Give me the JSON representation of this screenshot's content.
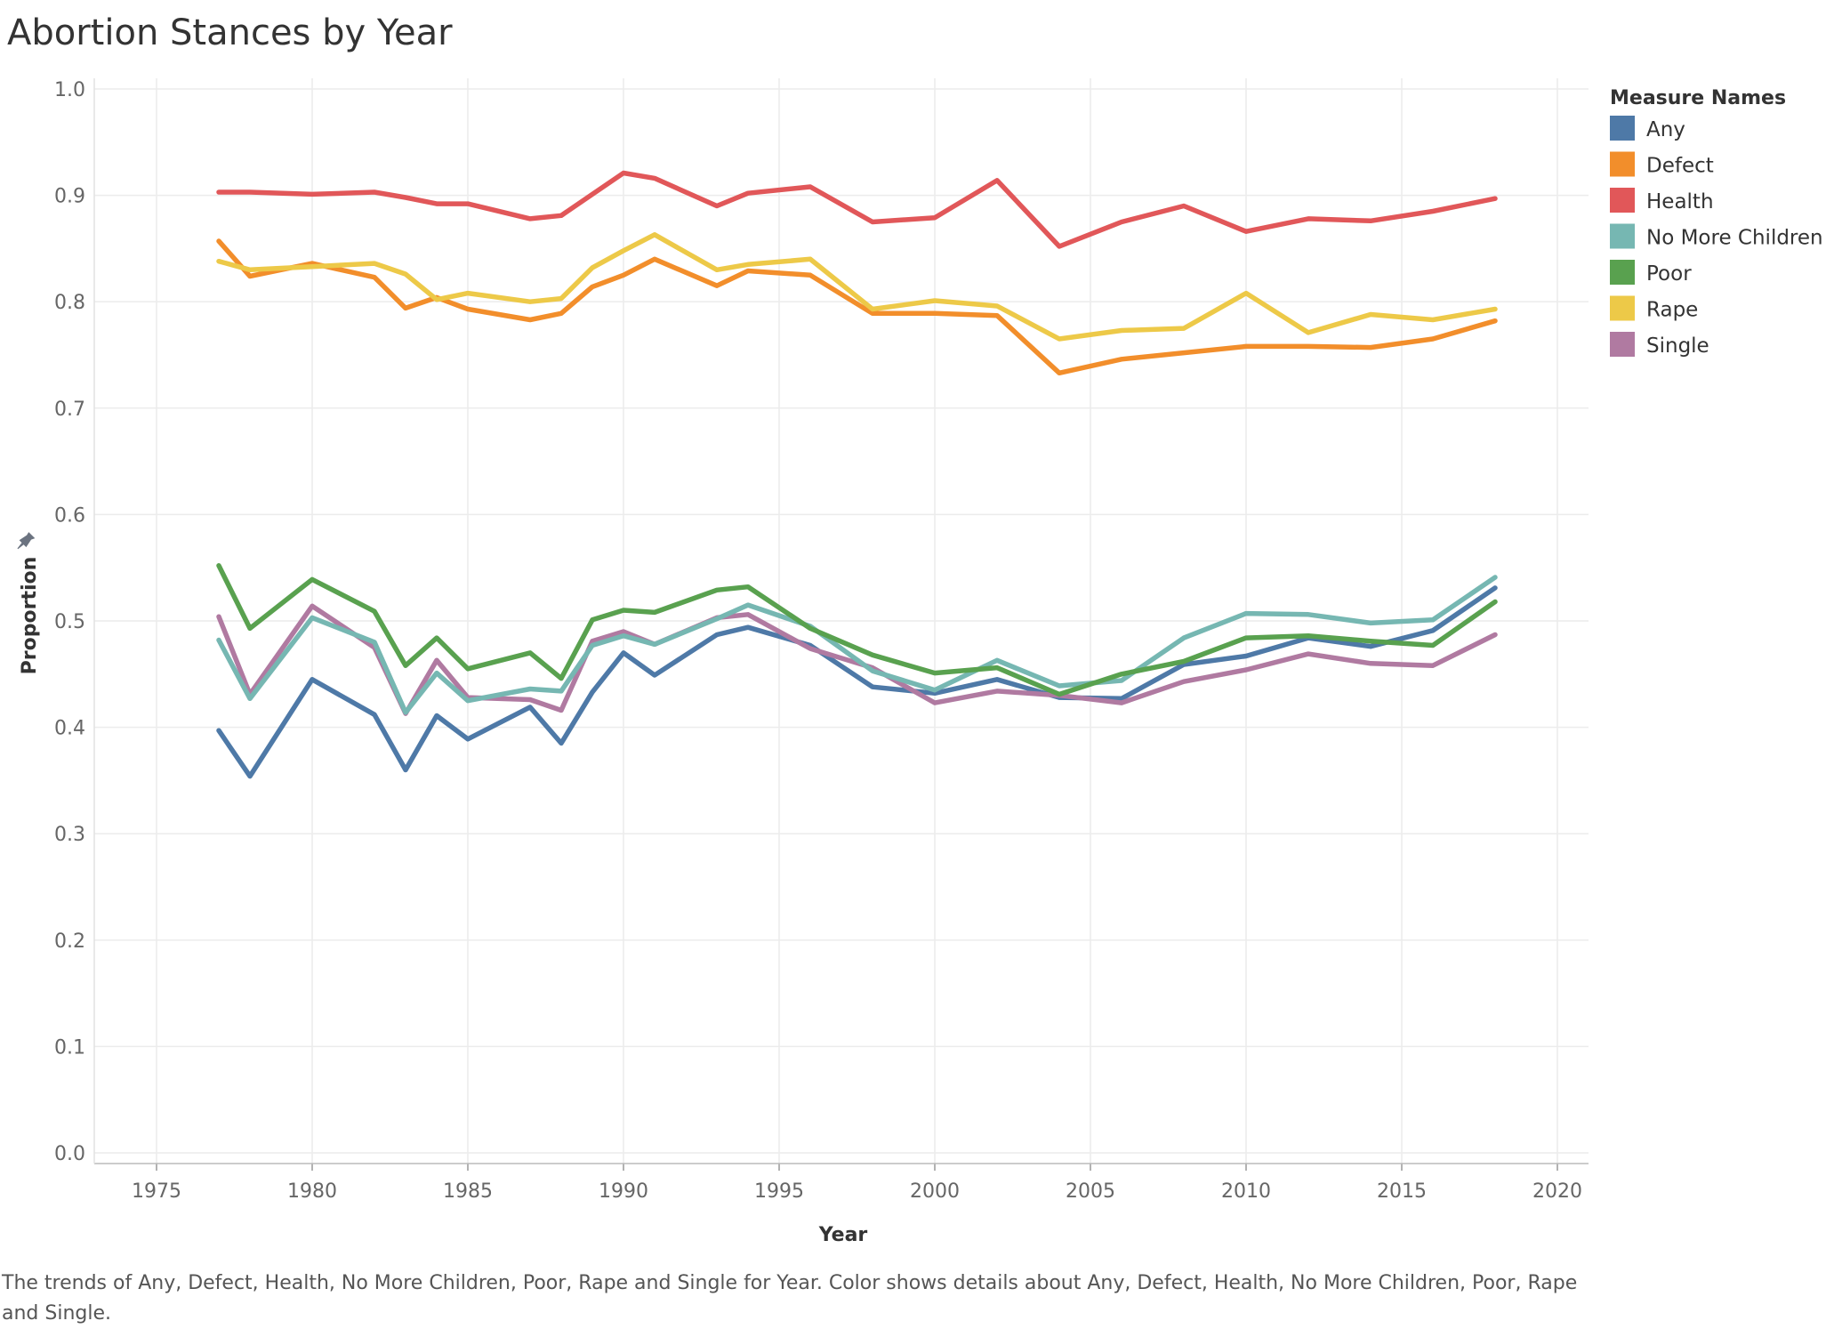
{
  "chart_data": {
    "type": "line",
    "title": "Abortion Stances by Year",
    "xlabel": "Year",
    "ylabel": "Proportion",
    "xlim": [
      1973,
      2021
    ],
    "ylim": [
      -0.01,
      1.01
    ],
    "xticks": [
      1975,
      1980,
      1985,
      1990,
      1995,
      2000,
      2005,
      2010,
      2015,
      2020
    ],
    "yticks": [
      "0.0",
      "0.1",
      "0.2",
      "0.3",
      "0.4",
      "0.5",
      "0.6",
      "0.7",
      "0.8",
      "0.9",
      "1.0"
    ],
    "grid": true,
    "legend": {
      "title": "Measure Names",
      "position": "right"
    },
    "x": [
      1977,
      1978,
      1980,
      1982,
      1983,
      1984,
      1985,
      1987,
      1988,
      1989,
      1990,
      1991,
      1993,
      1994,
      1996,
      1998,
      2000,
      2002,
      2004,
      2006,
      2008,
      2010,
      2012,
      2014,
      2016,
      2018
    ],
    "series": [
      {
        "name": "Any",
        "color": "#4e79a7",
        "values": [
          0.397,
          0.354,
          0.445,
          0.412,
          0.36,
          0.411,
          0.389,
          0.419,
          0.385,
          0.433,
          0.47,
          0.449,
          0.487,
          0.494,
          0.477,
          0.438,
          0.432,
          0.445,
          0.428,
          0.427,
          0.459,
          0.467,
          0.484,
          0.476,
          0.491,
          0.531
        ]
      },
      {
        "name": "Defect",
        "color": "#f28e2b",
        "values": [
          0.857,
          0.824,
          0.836,
          0.823,
          0.794,
          0.804,
          0.793,
          0.783,
          0.789,
          0.814,
          0.825,
          0.84,
          0.815,
          0.829,
          0.825,
          0.789,
          0.789,
          0.787,
          0.733,
          0.746,
          0.752,
          0.758,
          0.758,
          0.757,
          0.765,
          0.782
        ]
      },
      {
        "name": "Health",
        "color": "#e15759",
        "values": [
          0.903,
          0.903,
          0.901,
          0.903,
          0.898,
          0.892,
          0.892,
          0.878,
          0.881,
          0.901,
          0.921,
          0.916,
          0.89,
          0.902,
          0.908,
          0.875,
          0.879,
          0.914,
          0.852,
          0.875,
          0.89,
          0.866,
          0.878,
          0.876,
          0.885,
          0.897
        ]
      },
      {
        "name": "No More Children",
        "color": "#76b7b2",
        "values": [
          0.482,
          0.427,
          0.503,
          0.48,
          0.414,
          0.451,
          0.425,
          0.436,
          0.434,
          0.477,
          0.486,
          0.478,
          0.502,
          0.515,
          0.495,
          0.453,
          0.435,
          0.463,
          0.439,
          0.444,
          0.484,
          0.507,
          0.506,
          0.498,
          0.501,
          0.541
        ]
      },
      {
        "name": "Poor",
        "color": "#59a14f",
        "values": [
          0.552,
          0.493,
          0.539,
          0.509,
          0.458,
          0.484,
          0.455,
          0.47,
          0.446,
          0.501,
          0.51,
          0.508,
          0.529,
          0.532,
          0.493,
          0.468,
          0.451,
          0.456,
          0.431,
          0.45,
          0.462,
          0.484,
          0.486,
          0.481,
          0.477,
          0.518
        ]
      },
      {
        "name": "Rape",
        "color": "#edc948",
        "values": [
          0.838,
          0.83,
          0.833,
          0.836,
          0.826,
          0.802,
          0.808,
          0.8,
          0.803,
          0.832,
          0.848,
          0.863,
          0.83,
          0.835,
          0.84,
          0.793,
          0.801,
          0.796,
          0.765,
          0.773,
          0.775,
          0.808,
          0.771,
          0.788,
          0.783,
          0.793
        ]
      },
      {
        "name": "Single",
        "color": "#b07aa1",
        "values": [
          0.504,
          0.431,
          0.514,
          0.475,
          0.413,
          0.463,
          0.428,
          0.426,
          0.416,
          0.481,
          0.49,
          0.478,
          0.503,
          0.506,
          0.474,
          0.456,
          0.423,
          0.434,
          0.43,
          0.423,
          0.443,
          0.454,
          0.469,
          0.46,
          0.458,
          0.487
        ]
      }
    ]
  },
  "caption": "The trends of Any, Defect, Health, No More Children, Poor, Rape and Single for Year.  Color shows details about Any, Defect, Health, No More Children, Poor, Rape and Single."
}
